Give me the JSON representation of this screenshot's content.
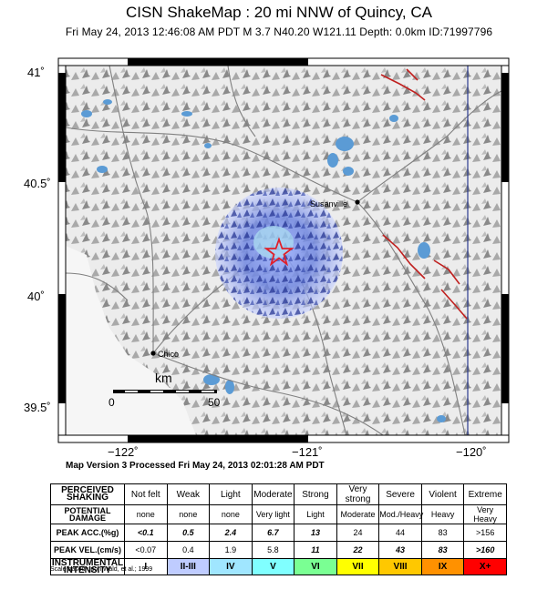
{
  "header": {
    "title": "CISN ShakeMap : 20 mi NNW of Quincy, CA",
    "subtitle": "Fri May 24, 2013 12:46:08 AM PDT   M 3.7   N40.20 W121.11   Depth: 0.0km   ID:71997796"
  },
  "axes": {
    "lat_ticks": [
      "41˚",
      "40.5˚",
      "40˚",
      "39.5˚"
    ],
    "lon_ticks": [
      "−122˚",
      "−121˚",
      "−120˚"
    ]
  },
  "cities": [
    {
      "name": "Susanville"
    },
    {
      "name": "Chico"
    }
  ],
  "scale_bar": {
    "unit": "km",
    "start": "0",
    "end": "50"
  },
  "version_line": "Map Version 3 Processed Fri May 24, 2013 02:01:28 AM PDT",
  "legend": {
    "row_headers": {
      "shaking": "PERCEIVED SHAKING",
      "damage": "POTENTIAL DAMAGE",
      "acc": "PEAK ACC.(%g)",
      "vel": "PEAK VEL.(cm/s)",
      "intensity": "INSTRUMENTAL INTENSITY"
    },
    "shaking": [
      "Not felt",
      "Weak",
      "Light",
      "Moderate",
      "Strong",
      "Very strong",
      "Severe",
      "Violent",
      "Extreme"
    ],
    "damage": [
      "none",
      "none",
      "none",
      "Very light",
      "Light",
      "Moderate",
      "Mod./Heavy",
      "Heavy",
      "Very Heavy"
    ],
    "acc": [
      "<0.1",
      "0.5",
      "2.4",
      "6.7",
      "13",
      "24",
      "44",
      "83",
      ">156"
    ],
    "vel": [
      "<0.07",
      "0.4",
      "1.9",
      "5.8",
      "11",
      "22",
      "43",
      "83",
      ">160"
    ],
    "intensity": [
      "I",
      "II-III",
      "IV",
      "V",
      "VI",
      "VII",
      "VIII",
      "IX",
      "X+"
    ],
    "intensity_colors": [
      "#ffffff",
      "#bfccff",
      "#a0e6ff",
      "#80ffff",
      "#7aff93",
      "#ffff00",
      "#ffc800",
      "#ff9100",
      "#ff0000"
    ]
  },
  "footnote": "Scale based upon Wald, et al.; 1999"
}
